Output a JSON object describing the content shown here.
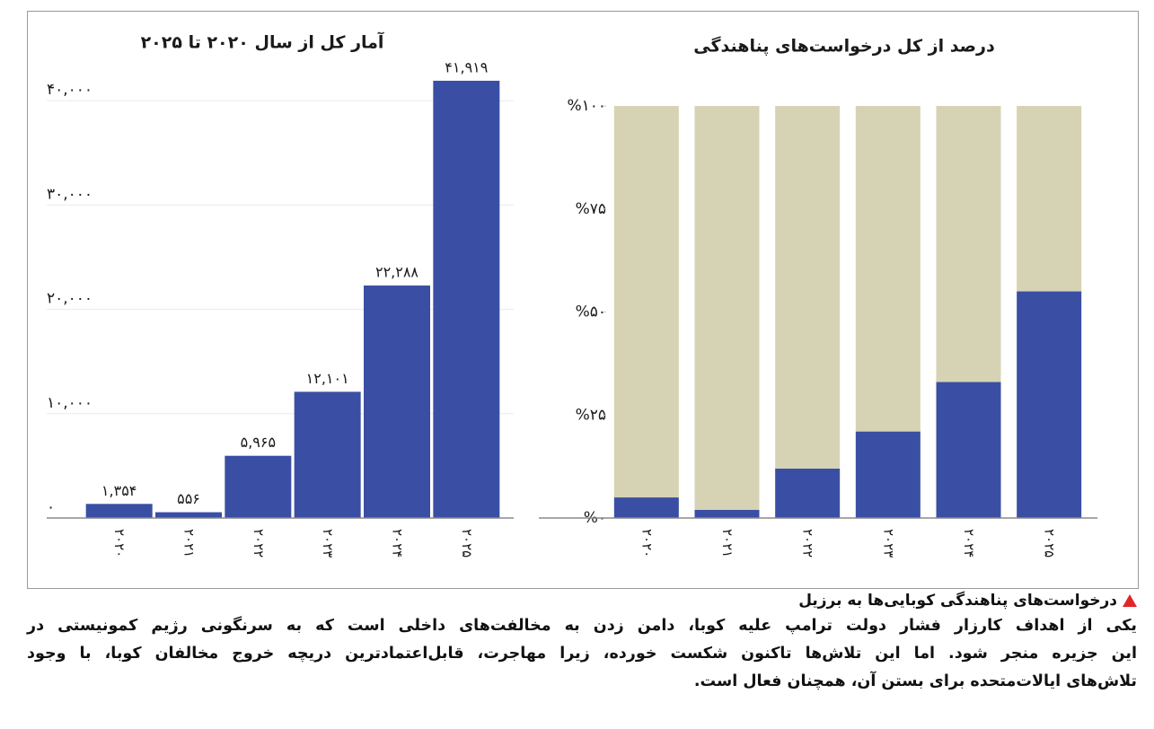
{
  "chart_data": [
    {
      "type": "bar",
      "title": "آمار کل از سال ۲۰۲۰ تا ۲۰۲۵",
      "categories": [
        "۲۰۲۰",
        "۲۰۲۱",
        "۲۰۲۲",
        "۲۰۲۳",
        "۲۰۲۴",
        "۲۰۲۵"
      ],
      "values": [
        1354,
        556,
        5965,
        12101,
        22288,
        41919
      ],
      "value_labels": [
        "۱,۳۵۴",
        "۵۵۶",
        "۵,۹۶۵",
        "۱۲,۱۰۱",
        "۲۲,۲۸۸",
        "۴۱,۹۱۹"
      ],
      "color": "#3a4fa3",
      "ylim": [
        0,
        42000
      ],
      "yticks": [
        {
          "value": 0,
          "label": "۰"
        },
        {
          "value": 10000,
          "label": "۱۰,۰۰۰"
        },
        {
          "value": 20000,
          "label": "۲۰,۰۰۰"
        },
        {
          "value": 30000,
          "label": "۳۰,۰۰۰"
        },
        {
          "value": 40000,
          "label": "۴۰,۰۰۰"
        }
      ],
      "grid": true
    },
    {
      "type": "stacked_bar",
      "title": "درصد از کل درخواست‌های پناهندگی",
      "categories": [
        "۲۰۲۰",
        "۲۰۲۱",
        "۲۰۲۲",
        "۲۰۲۳",
        "۲۰۲۴",
        "۲۰۲۵"
      ],
      "series": [
        {
          "color": "#3a4fa3",
          "values": [
            5,
            2,
            12,
            21,
            33,
            55
          ]
        },
        {
          "color": "#d6d2b4",
          "values": [
            95,
            98,
            88,
            79,
            67,
            45
          ]
        }
      ],
      "ylim": [
        0,
        100
      ],
      "yticks": [
        {
          "value": 0,
          "label": "%۰"
        },
        {
          "value": 25,
          "label": "%۲۵"
        },
        {
          "value": 50,
          "label": "%۵۰"
        },
        {
          "value": 75,
          "label": "%۷۵"
        },
        {
          "value": 100,
          "label": "%۱۰۰"
        }
      ],
      "grid": false
    }
  ],
  "caption": {
    "heading": "درخواست‌های پناهندگی کوبایی‌ها به برزیل",
    "lines": [
      "یکی از اهداف کارزار فشار دولت ترامپ علیه کوبا، دامن زدن به مخالفت‌های داخلی است که به سرنگونی رژیم کمونیستی در",
      "این جزیره منجر شود. اما این تلاش‌ها تاکنون شکست خورده، زیرا مهاجرت، قابل‌اعتمادترین دریچه خروج مخالفان کوبا، با وجود",
      "تلاش‌های ایالات‌متحده برای بستن آن، همچنان فعال است."
    ]
  }
}
